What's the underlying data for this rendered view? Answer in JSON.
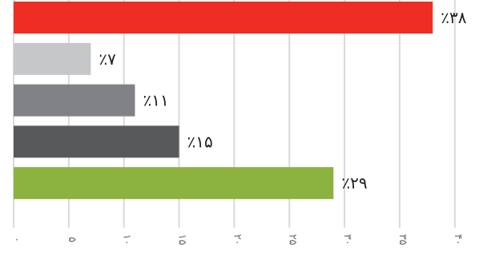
{
  "chart_data": {
    "type": "bar",
    "orientation": "horizontal",
    "categories": [
      "",
      "",
      "",
      "",
      ""
    ],
    "values": [
      38,
      7,
      11,
      15,
      29
    ],
    "value_labels": [
      "٪۳۸",
      "٪۷",
      "٪۱۱",
      "٪۱۵",
      "٪۲۹"
    ],
    "bar_colors": [
      "#ee2e24",
      "#c6c7c9",
      "#808285",
      "#58595b",
      "#8cb23f"
    ],
    "title": "",
    "xlabel": "",
    "ylabel": "",
    "xlim": [
      0,
      40
    ],
    "x_ticks": [
      0,
      5,
      10,
      15,
      20,
      25,
      30,
      35,
      40
    ],
    "x_tick_labels": [
      "۰",
      "۵",
      "۱۰",
      "۱۵",
      "۲۰",
      "۲۵",
      "۳۰",
      "۳۵",
      "۴۰"
    ],
    "grid": true,
    "legend": "none"
  }
}
